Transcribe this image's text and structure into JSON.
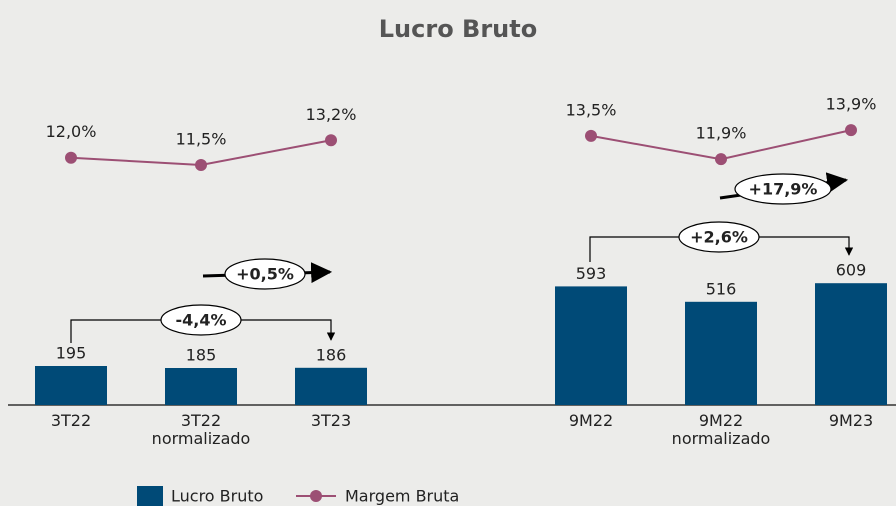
{
  "chart_data": {
    "type": "bar-line",
    "title": "Lucro Bruto",
    "categories": [
      "3T22",
      "3T22 normalizado",
      "3T23",
      null,
      "9M22",
      "9M22 normalizado",
      "9M23"
    ],
    "series": [
      {
        "name": "Lucro Bruto",
        "type": "bar",
        "color": "#004a77",
        "values": [
          195,
          185,
          186,
          null,
          593,
          516,
          609
        ]
      },
      {
        "name": "Margem Bruta",
        "type": "line",
        "axis": "y2",
        "color": "#9c4f74",
        "values": [
          12.0,
          11.5,
          13.2,
          null,
          13.5,
          11.9,
          13.9
        ],
        "value_labels": [
          "12,0%",
          "11,5%",
          "13,2%",
          null,
          "13,5%",
          "11,9%",
          "13,9%"
        ]
      }
    ],
    "ylim": [
      0,
      2000
    ],
    "y2lim": [
      -5,
      22.5
    ],
    "annotations": [
      "-4,4%",
      "+0,5%",
      "+2,6%",
      "+17,9%"
    ],
    "legend": "bottom"
  }
}
